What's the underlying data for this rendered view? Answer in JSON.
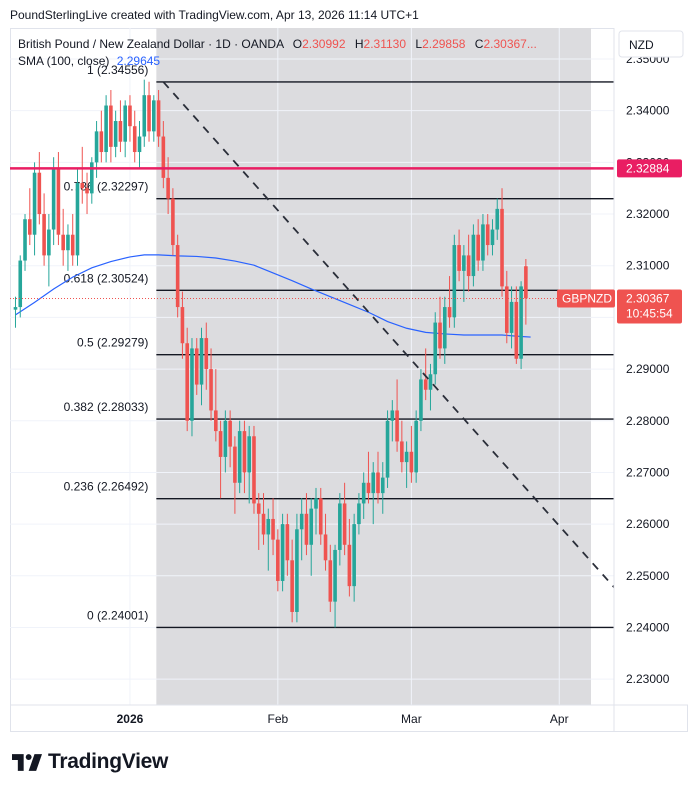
{
  "credit": "PoundSterlingLive created with TradingView.com, Apr 13, 2026 11:14 UTC+1",
  "legend": {
    "symbol": "British Pound / New Zealand Dollar · 1D · OANDA",
    "o_label": "O",
    "o_val": "2.30992",
    "h_label": "H",
    "h_val": "2.31130",
    "l_label": "L",
    "l_val": "2.29858",
    "c_label": "C",
    "c_val": "2.30367...",
    "sma_label": "SMA (100, close)",
    "sma_val": "2.29645"
  },
  "currency_button": "NZD",
  "footer_brand": "TradingView",
  "colors": {
    "up": "#26a69a",
    "down": "#ef5350",
    "sma": "#2962ff",
    "hline": "#e91e63",
    "shade": "#dcdcdf",
    "fib": "#131722"
  },
  "chart_data": {
    "type": "candlestick",
    "title": "British Pound / New Zealand Dollar · 1D · OANDA",
    "ylim": [
      2.225,
      2.356
    ],
    "y_ticks": [
      "2.35000",
      "2.34000",
      "2.33000",
      "2.32000",
      "2.31000",
      "2.30000",
      "2.29000",
      "2.28000",
      "2.27000",
      "2.26000",
      "2.25000",
      "2.24000",
      "2.23000"
    ],
    "x_tick_labels": [
      {
        "day": 8,
        "label": "2026"
      },
      {
        "day": 39,
        "label": "Feb"
      },
      {
        "day": 67,
        "label": "Mar"
      },
      {
        "day": 98,
        "label": "Apr"
      }
    ],
    "grid": true,
    "fib_levels": [
      {
        "label": "1 (2.34556)",
        "value": 2.34556
      },
      {
        "label": "0.786 (2.32297)",
        "value": 2.32297
      },
      {
        "label": "0.618 (2.30524)",
        "value": 2.30524
      },
      {
        "label": "0.5 (2.29279)",
        "value": 2.29279
      },
      {
        "label": "0.382 (2.28033)",
        "value": 2.28033
      },
      {
        "label": "0.236 (2.26492)",
        "value": 2.26492
      },
      {
        "label": "0 (2.24001)",
        "value": 2.24001
      }
    ],
    "fib_start_day": 15,
    "fib_end_day": 117,
    "trend_line": {
      "from": {
        "day": 15,
        "value": 2.34556
      },
      "to": {
        "day": 117,
        "value": 2.24001
      }
    },
    "horizontal_line": {
      "value": 2.32884,
      "label": "2.32884"
    },
    "last_price": {
      "symbol": "GBPNZD",
      "value": 2.30367,
      "label": "2.30367",
      "countdown": "10:45:54"
    },
    "series": [
      {
        "name": "GBPNZD",
        "ohlc": [
          [
            -16,
            2.3015,
            2.304,
            2.298,
            2.302
          ],
          [
            -15,
            2.302,
            2.312,
            2.3,
            2.311
          ],
          [
            -14,
            2.311,
            2.32,
            2.309,
            2.319
          ],
          [
            -13,
            2.319,
            2.325,
            2.314,
            2.316
          ],
          [
            -12,
            2.316,
            2.33,
            2.312,
            2.328
          ],
          [
            -11,
            2.328,
            2.332,
            2.318,
            2.32
          ],
          [
            -10,
            2.32,
            2.324,
            2.31,
            2.312
          ],
          [
            -9,
            2.312,
            2.32,
            2.306,
            2.317
          ],
          [
            -8,
            2.317,
            2.331,
            2.314,
            2.329
          ],
          [
            -7,
            2.329,
            2.332,
            2.314,
            2.316
          ],
          [
            -6,
            2.316,
            2.321,
            2.31,
            2.313
          ],
          [
            -5,
            2.313,
            2.318,
            2.309,
            2.316
          ],
          [
            -4,
            2.316,
            2.32,
            2.31,
            2.312
          ],
          [
            -3,
            2.312,
            2.329,
            2.31,
            2.326
          ],
          [
            -2,
            2.326,
            2.333,
            2.322,
            2.325
          ],
          [
            -1,
            2.325,
            2.328,
            2.32,
            2.324
          ],
          [
            0,
            2.324,
            2.331,
            2.322,
            2.33
          ],
          [
            1,
            2.33,
            2.338,
            2.327,
            2.336
          ],
          [
            2,
            2.336,
            2.34,
            2.33,
            2.332
          ],
          [
            3,
            2.332,
            2.343,
            2.33,
            2.341
          ],
          [
            4,
            2.341,
            2.344,
            2.33,
            2.333
          ],
          [
            5,
            2.333,
            2.34,
            2.331,
            2.338
          ],
          [
            6,
            2.338,
            2.342,
            2.332,
            2.334
          ],
          [
            7,
            2.334,
            2.342,
            2.331,
            2.341
          ],
          [
            8,
            2.341,
            2.343,
            2.334,
            2.337
          ],
          [
            9,
            2.337,
            2.34,
            2.33,
            2.332
          ],
          [
            10,
            2.332,
            2.338,
            2.329,
            2.335
          ],
          [
            11,
            2.335,
            2.346,
            2.333,
            2.343
          ],
          [
            12,
            2.343,
            2.3456,
            2.334,
            2.336
          ],
          [
            13,
            2.336,
            2.343,
            2.334,
            2.342
          ],
          [
            14,
            2.342,
            2.344,
            2.333,
            2.335
          ],
          [
            15,
            2.335,
            2.338,
            2.325,
            2.327
          ],
          [
            16,
            2.327,
            2.331,
            2.32,
            2.323
          ],
          [
            17,
            2.323,
            2.325,
            2.312,
            2.314
          ],
          [
            18,
            2.314,
            2.316,
            2.3,
            2.302
          ],
          [
            19,
            2.302,
            2.305,
            2.292,
            2.295
          ],
          [
            20,
            2.295,
            2.298,
            2.278,
            2.28
          ],
          [
            21,
            2.28,
            2.296,
            2.277,
            2.294
          ],
          [
            22,
            2.294,
            2.296,
            2.285,
            2.287
          ],
          [
            23,
            2.287,
            2.298,
            2.283,
            2.296
          ],
          [
            24,
            2.296,
            2.299,
            2.286,
            2.29
          ],
          [
            25,
            2.29,
            2.294,
            2.28,
            2.282
          ],
          [
            26,
            2.282,
            2.29,
            2.276,
            2.278
          ],
          [
            27,
            2.278,
            2.28,
            2.265,
            2.273
          ],
          [
            28,
            2.273,
            2.282,
            2.27,
            2.28
          ],
          [
            29,
            2.28,
            2.282,
            2.271,
            2.275
          ],
          [
            30,
            2.275,
            2.277,
            2.262,
            2.268
          ],
          [
            31,
            2.268,
            2.28,
            2.266,
            2.278
          ],
          [
            32,
            2.278,
            2.28,
            2.266,
            2.27
          ],
          [
            33,
            2.27,
            2.279,
            2.264,
            2.277
          ],
          [
            34,
            2.277,
            2.279,
            2.262,
            2.264
          ],
          [
            35,
            2.264,
            2.266,
            2.255,
            2.262
          ],
          [
            36,
            2.262,
            2.266,
            2.256,
            2.258
          ],
          [
            37,
            2.258,
            2.263,
            2.251,
            2.261
          ],
          [
            38,
            2.261,
            2.265,
            2.254,
            2.257
          ],
          [
            39,
            2.257,
            2.259,
            2.247,
            2.249
          ],
          [
            40,
            2.249,
            2.262,
            2.247,
            2.26
          ],
          [
            41,
            2.26,
            2.262,
            2.25,
            2.253
          ],
          [
            42,
            2.253,
            2.257,
            2.241,
            2.243
          ],
          [
            43,
            2.243,
            2.262,
            2.241,
            2.259
          ],
          [
            44,
            2.259,
            2.265,
            2.253,
            2.262
          ],
          [
            45,
            2.262,
            2.266,
            2.254,
            2.256
          ],
          [
            46,
            2.256,
            2.265,
            2.25,
            2.263
          ],
          [
            47,
            2.263,
            2.267,
            2.258,
            2.265
          ],
          [
            48,
            2.265,
            2.267,
            2.256,
            2.258
          ],
          [
            49,
            2.258,
            2.262,
            2.251,
            2.253
          ],
          [
            50,
            2.253,
            2.256,
            2.243,
            2.245
          ],
          [
            51,
            2.245,
            2.256,
            2.24,
            2.255
          ],
          [
            52,
            2.255,
            2.266,
            2.252,
            2.264
          ],
          [
            53,
            2.264,
            2.268,
            2.254,
            2.256
          ],
          [
            54,
            2.256,
            2.261,
            2.246,
            2.248
          ],
          [
            55,
            2.248,
            2.262,
            2.245,
            2.26
          ],
          [
            56,
            2.26,
            2.266,
            2.258,
            2.264
          ],
          [
            57,
            2.264,
            2.27,
            2.261,
            2.268
          ],
          [
            58,
            2.268,
            2.274,
            2.264,
            2.266
          ],
          [
            59,
            2.266,
            2.272,
            2.26,
            2.27
          ],
          [
            60,
            2.27,
            2.274,
            2.264,
            2.266
          ],
          [
            61,
            2.266,
            2.272,
            2.262,
            2.269
          ],
          [
            62,
            2.269,
            2.282,
            2.267,
            2.28
          ],
          [
            63,
            2.28,
            2.284,
            2.276,
            2.282
          ],
          [
            64,
            2.282,
            2.288,
            2.274,
            2.276
          ],
          [
            65,
            2.276,
            2.28,
            2.27,
            2.272
          ],
          [
            66,
            2.272,
            2.276,
            2.267,
            2.274
          ],
          [
            67,
            2.274,
            2.279,
            2.268,
            2.27
          ],
          [
            68,
            2.27,
            2.282,
            2.268,
            2.28
          ],
          [
            69,
            2.28,
            2.29,
            2.278,
            2.288
          ],
          [
            70,
            2.288,
            2.294,
            2.284,
            2.286
          ],
          [
            71,
            2.286,
            2.291,
            2.282,
            2.289
          ],
          [
            72,
            2.289,
            2.301,
            2.287,
            2.299
          ],
          [
            73,
            2.299,
            2.304,
            2.292,
            2.294
          ],
          [
            74,
            2.294,
            2.304,
            2.291,
            2.302
          ],
          [
            75,
            2.302,
            2.308,
            2.298,
            2.3
          ],
          [
            76,
            2.3,
            2.316,
            2.298,
            2.314
          ],
          [
            77,
            2.314,
            2.317,
            2.307,
            2.309
          ],
          [
            78,
            2.309,
            2.314,
            2.303,
            2.312
          ],
          [
            79,
            2.312,
            2.316,
            2.305,
            2.308
          ],
          [
            80,
            2.308,
            2.318,
            2.306,
            2.316
          ],
          [
            81,
            2.316,
            2.319,
            2.309,
            2.311
          ],
          [
            82,
            2.311,
            2.32,
            2.309,
            2.318
          ],
          [
            83,
            2.318,
            2.32,
            2.312,
            2.314
          ],
          [
            84,
            2.314,
            2.319,
            2.312,
            2.317
          ],
          [
            85,
            2.317,
            2.323,
            2.315,
            2.321
          ],
          [
            86,
            2.321,
            2.325,
            2.304,
            2.306
          ],
          [
            87,
            2.306,
            2.309,
            2.295,
            2.297
          ],
          [
            88,
            2.297,
            2.306,
            2.294,
            2.303
          ],
          [
            89,
            2.303,
            2.306,
            2.291,
            2.292
          ],
          [
            90,
            2.292,
            2.307,
            2.29,
            2.306
          ],
          [
            91,
            2.3099,
            2.3113,
            2.2986,
            2.3037
          ]
        ]
      },
      {
        "name": "SMA (100, close)",
        "points": [
          [
            -16,
            2.3005
          ],
          [
            -12,
            2.3029
          ],
          [
            -8,
            2.3055
          ],
          [
            -4,
            2.3078
          ],
          [
            0,
            2.3096
          ],
          [
            4,
            2.3108
          ],
          [
            8,
            2.3117
          ],
          [
            11,
            2.3121
          ],
          [
            14,
            2.3121
          ],
          [
            18,
            2.3119
          ],
          [
            22,
            2.3118
          ],
          [
            26,
            2.3115
          ],
          [
            30,
            2.3109
          ],
          [
            34,
            2.3101
          ],
          [
            38,
            2.3086
          ],
          [
            42,
            2.3071
          ],
          [
            46,
            2.3055
          ],
          [
            50,
            2.304
          ],
          [
            54,
            2.3025
          ],
          [
            58,
            2.301
          ],
          [
            62,
            2.2992
          ],
          [
            66,
            2.2979
          ],
          [
            70,
            2.2971
          ],
          [
            74,
            2.2968
          ],
          [
            78,
            2.2966
          ],
          [
            82,
            2.2966
          ],
          [
            86,
            2.2966
          ],
          [
            90,
            2.2963
          ],
          [
            92,
            2.2962
          ]
        ]
      }
    ],
    "shaded_region_days": [
      15,
      76
    ]
  }
}
